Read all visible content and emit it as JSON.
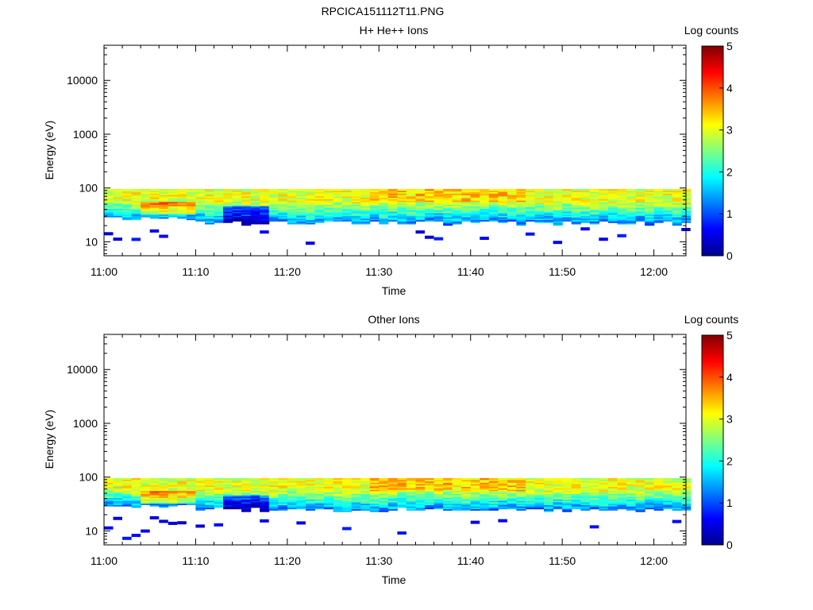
{
  "figure": {
    "title": "RPCICA151112T11.PNG"
  },
  "chart_data": [
    {
      "type": "heatmap",
      "title": "H+ He++ Ions",
      "xlabel": "Time",
      "ylabel": "Energy (eV)",
      "yscale": "log",
      "ylim": [
        5.5,
        45000
      ],
      "xlim_minutes": [
        0,
        63.5
      ],
      "x_ticks": [
        "11:00",
        "11:10",
        "11:20",
        "11:30",
        "11:40",
        "11:50",
        "12:00"
      ],
      "y_ticks": [
        "10",
        "100",
        "1000",
        "10000"
      ],
      "colorbar": {
        "label": "Log counts",
        "range": [
          0,
          5
        ],
        "ticks": [
          "0",
          "1",
          "2",
          "3",
          "4",
          "5"
        ]
      },
      "description": "Ion counts confined to roughly 18-100 eV throughout 11:00-12:03; strongest (~4) near 40-50 eV around 11:04-11:09; sparse low counts below 20 eV before 11:05."
    },
    {
      "type": "heatmap",
      "title": "Other Ions",
      "xlabel": "Time",
      "ylabel": "Energy (eV)",
      "yscale": "log",
      "ylim": [
        5.5,
        45000
      ],
      "xlim_minutes": [
        0,
        63.5
      ],
      "x_ticks": [
        "11:00",
        "11:10",
        "11:20",
        "11:30",
        "11:40",
        "11:50",
        "12:00"
      ],
      "y_ticks": [
        "10",
        "100",
        "1000",
        "10000"
      ],
      "colorbar": {
        "label": "Log counts",
        "range": [
          0,
          5
        ],
        "ticks": [
          "0",
          "1",
          "2",
          "3",
          "4",
          "5"
        ]
      },
      "description": "Counts in roughly 20-100 eV band; peak (~4.3) near 40 eV around 11:04-11:07 and ~3.8 near 70-90 eV around 11:30-11:45; scattered single-bin counts below 20 eV."
    }
  ]
}
